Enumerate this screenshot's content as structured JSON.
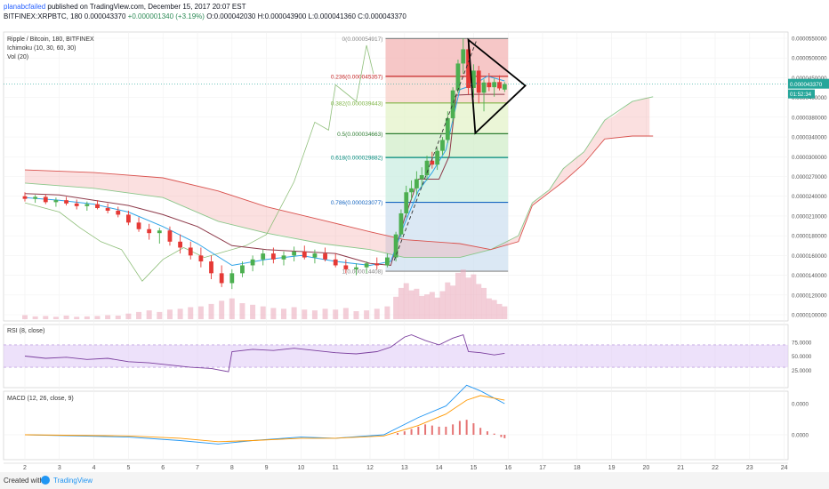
{
  "header": {
    "user": "planabcfailed",
    "published": "published on TradingView.com, December 15, 2017 20:07 EST",
    "symbol": "BITFINEX:XRPBTC, 180",
    "last": "0.000043370",
    "change": "+0.000001340 (+3.19%)",
    "ohlc": "O:0.000042030 H:0.000043900 L:0.000041360 C:0.000043370"
  },
  "footer": {
    "created_with": "Created with",
    "brand": "TradingView"
  },
  "chart_data": {
    "type": "candlestick",
    "legend": [
      "Ripple / Bitcoin, 180, BITFINEX",
      "Ichimoku (10, 30, 60, 30)",
      "Vol (20)"
    ],
    "x_ticks": [
      "2",
      "3",
      "4",
      "5",
      "6",
      "7",
      "8",
      "9",
      "10",
      "11",
      "12",
      "13",
      "14",
      "15",
      "16",
      "17",
      "18",
      "19",
      "20",
      "21",
      "22",
      "23",
      "24"
    ],
    "price_ticks": [
      "0.0000550000",
      "0.0000500000",
      "0.0000450000",
      "0.0000400000",
      "0.0000380000",
      "0.0000340000",
      "0.0000300000",
      "0.0000270000",
      "0.0000240000",
      "0.0000210000",
      "0.0000180000",
      "0.0000160000",
      "0.0000140000",
      "0.0000120000",
      "0.0000100000"
    ],
    "price_tick_values": [
      5.5e-05,
      5e-05,
      4.5e-05,
      4e-05,
      3.8e-05,
      3.4e-05,
      3e-05,
      2.7e-05,
      2.4e-05,
      2.1e-05,
      1.8e-05,
      1.6e-05,
      1.4e-05,
      1.2e-05,
      1.01e-05
    ],
    "last_price_label": "0.000043370",
    "countdown_label": "01:52:34",
    "fib_levels": [
      {
        "label": "0(0.000054917)",
        "value": 5.4917e-05,
        "color": "#888888"
      },
      {
        "label": "0.236(0.000045357)",
        "value": 4.5357e-05,
        "color": "#c62828"
      },
      {
        "label": "0.382(0.000039443)",
        "value": 3.9443e-05,
        "color": "#7cb342"
      },
      {
        "label": "0.5(0.000034663)",
        "value": 3.4663e-05,
        "color": "#2e7d32"
      },
      {
        "label": "0.618(0.000029882)",
        "value": 2.9882e-05,
        "color": "#00897b"
      },
      {
        "label": "0.786(0.000023077)",
        "value": 2.3077e-05,
        "color": "#1565c0"
      },
      {
        "label": "1(0.000014408)",
        "value": 1.4408e-05,
        "color": "#888888"
      }
    ],
    "candles": [
      [
        2.0,
        24.0,
        24.6,
        23.2,
        23.6
      ],
      [
        2.3,
        23.6,
        24.2,
        23.0,
        23.9
      ],
      [
        2.6,
        23.9,
        24.3,
        22.8,
        23.1
      ],
      [
        2.9,
        23.1,
        23.8,
        22.4,
        23.4
      ],
      [
        3.2,
        23.4,
        23.9,
        22.6,
        22.9
      ],
      [
        3.5,
        22.9,
        23.5,
        22.0,
        22.5
      ],
      [
        3.8,
        22.5,
        23.2,
        21.8,
        22.8
      ],
      [
        4.1,
        22.8,
        23.4,
        22.0,
        22.2
      ],
      [
        4.4,
        22.2,
        22.9,
        21.4,
        21.8
      ],
      [
        4.7,
        21.8,
        22.4,
        20.8,
        21.2
      ],
      [
        5.0,
        21.2,
        21.8,
        19.6,
        20.0
      ],
      [
        5.3,
        20.0,
        20.8,
        18.6,
        19.0
      ],
      [
        5.6,
        19.0,
        19.8,
        17.6,
        18.4
      ],
      [
        5.9,
        18.4,
        19.2,
        17.2,
        18.8
      ],
      [
        6.2,
        18.8,
        19.4,
        17.0,
        17.4
      ],
      [
        6.5,
        17.4,
        18.2,
        16.2,
        16.8
      ],
      [
        6.8,
        16.8,
        17.4,
        15.6,
        16.0
      ],
      [
        7.1,
        16.0,
        16.8,
        14.8,
        15.4
      ],
      [
        7.4,
        15.4,
        16.0,
        13.6,
        14.2
      ],
      [
        7.7,
        14.2,
        15.0,
        12.8,
        13.2
      ],
      [
        8.0,
        13.2,
        14.6,
        12.6,
        14.2
      ],
      [
        8.3,
        14.2,
        15.4,
        13.8,
        15.0
      ],
      [
        8.6,
        15.0,
        16.0,
        14.4,
        15.6
      ],
      [
        8.9,
        15.6,
        16.6,
        15.0,
        16.2
      ],
      [
        9.2,
        16.2,
        16.8,
        15.2,
        15.6
      ],
      [
        9.5,
        15.6,
        16.4,
        15.0,
        16.0
      ],
      [
        9.8,
        16.0,
        16.9,
        15.4,
        16.4
      ],
      [
        10.1,
        16.4,
        17.0,
        15.6,
        15.8
      ],
      [
        10.4,
        15.8,
        16.6,
        15.2,
        16.2
      ],
      [
        10.7,
        16.2,
        16.8,
        15.4,
        15.6
      ],
      [
        11.0,
        15.6,
        16.2,
        14.8,
        15.0
      ],
      [
        11.3,
        15.0,
        15.6,
        14.2,
        14.6
      ],
      [
        11.6,
        14.6,
        15.2,
        14.0,
        14.8
      ],
      [
        11.9,
        14.8,
        15.4,
        14.2,
        15.2
      ],
      [
        12.2,
        15.2,
        15.8,
        14.6,
        15.0
      ],
      [
        12.5,
        15.0,
        16.2,
        14.8,
        15.8
      ],
      [
        12.75,
        15.8,
        18.6,
        15.4,
        18.2
      ],
      [
        12.9,
        18.2,
        22.0,
        17.8,
        21.4
      ],
      [
        13.05,
        21.4,
        25.6,
        20.8,
        24.6
      ],
      [
        13.2,
        24.6,
        26.4,
        23.4,
        25.2
      ],
      [
        13.35,
        25.2,
        27.8,
        24.2,
        26.6
      ],
      [
        13.5,
        26.6,
        28.4,
        25.4,
        27.2
      ],
      [
        13.65,
        27.2,
        30.2,
        26.4,
        29.4
      ],
      [
        13.8,
        29.4,
        31.0,
        28.2,
        28.8
      ],
      [
        13.95,
        28.8,
        31.8,
        28.0,
        31.2
      ],
      [
        14.1,
        31.2,
        34.0,
        30.4,
        33.4
      ],
      [
        14.25,
        33.4,
        38.6,
        32.8,
        37.8
      ],
      [
        14.4,
        37.8,
        42.6,
        37.0,
        41.8
      ],
      [
        14.55,
        41.8,
        49.6,
        41.0,
        48.6
      ],
      [
        14.7,
        48.6,
        55.0,
        46.0,
        52.2
      ],
      [
        14.85,
        52.2,
        53.6,
        40.8,
        42.4
      ],
      [
        15.0,
        42.4,
        48.4,
        40.0,
        46.8
      ],
      [
        15.15,
        46.8,
        48.0,
        39.4,
        41.2
      ],
      [
        15.3,
        41.2,
        44.6,
        38.6,
        43.8
      ],
      [
        15.45,
        43.8,
        46.2,
        41.6,
        42.6
      ],
      [
        15.6,
        42.6,
        44.8,
        40.2,
        43.9
      ],
      [
        15.75,
        43.9,
        45.6,
        41.8,
        42.3
      ],
      [
        15.9,
        42.0,
        43.9,
        41.4,
        43.4
      ]
    ],
    "volume": [
      [
        2.0,
        0.5
      ],
      [
        2.3,
        0.35
      ],
      [
        2.6,
        0.4
      ],
      [
        2.9,
        0.3
      ],
      [
        3.2,
        0.45
      ],
      [
        3.5,
        0.3
      ],
      [
        3.8,
        0.35
      ],
      [
        4.1,
        0.4
      ],
      [
        4.4,
        0.5
      ],
      [
        4.7,
        0.45
      ],
      [
        5.0,
        0.7
      ],
      [
        5.3,
        0.9
      ],
      [
        5.6,
        1.1
      ],
      [
        5.9,
        0.9
      ],
      [
        6.2,
        1.2
      ],
      [
        6.5,
        1.3
      ],
      [
        6.8,
        1.5
      ],
      [
        7.1,
        1.6
      ],
      [
        7.4,
        1.9
      ],
      [
        7.7,
        2.3
      ],
      [
        8.0,
        2.6
      ],
      [
        8.3,
        2.0
      ],
      [
        8.6,
        1.8
      ],
      [
        8.9,
        1.6
      ],
      [
        9.2,
        1.4
      ],
      [
        9.5,
        1.3
      ],
      [
        9.8,
        1.5
      ],
      [
        10.1,
        1.2
      ],
      [
        10.4,
        1.1
      ],
      [
        10.7,
        1.3
      ],
      [
        11.0,
        1.2
      ],
      [
        11.3,
        1.4
      ],
      [
        11.6,
        1.0
      ],
      [
        11.9,
        1.1
      ],
      [
        12.2,
        1.3
      ],
      [
        12.5,
        1.6
      ],
      [
        12.75,
        2.8
      ],
      [
        12.9,
        3.9
      ],
      [
        13.05,
        4.5
      ],
      [
        13.2,
        3.6
      ],
      [
        13.35,
        3.8
      ],
      [
        13.5,
        2.9
      ],
      [
        13.65,
        3.1
      ],
      [
        13.8,
        3.4
      ],
      [
        13.95,
        2.7
      ],
      [
        14.1,
        3.5
      ],
      [
        14.25,
        4.6
      ],
      [
        14.4,
        4.2
      ],
      [
        14.55,
        5.8
      ],
      [
        14.7,
        6.2
      ],
      [
        14.85,
        5.2
      ],
      [
        15.0,
        5.6
      ],
      [
        15.15,
        4.4
      ],
      [
        15.3,
        3.9
      ],
      [
        15.45,
        2.6
      ],
      [
        15.6,
        2.4
      ],
      [
        15.75,
        1.9
      ],
      [
        15.9,
        1.6
      ]
    ],
    "ichimoku": {
      "tenkan": [
        [
          2.0,
          23.8
        ],
        [
          3.0,
          23.4
        ],
        [
          4.0,
          22.8
        ],
        [
          5.0,
          21.6
        ],
        [
          6.0,
          19.4
        ],
        [
          7.0,
          17.2
        ],
        [
          8.0,
          15.0
        ],
        [
          9.0,
          15.6
        ],
        [
          10.0,
          16.0
        ],
        [
          11.0,
          15.4
        ],
        [
          12.0,
          15.0
        ],
        [
          12.6,
          15.4
        ],
        [
          13.0,
          19.8
        ],
        [
          13.4,
          24.8
        ],
        [
          13.8,
          27.6
        ],
        [
          14.2,
          31.4
        ],
        [
          14.6,
          42.0
        ],
        [
          15.0,
          43.2
        ],
        [
          15.4,
          45.4
        ],
        [
          15.9,
          44.2
        ]
      ],
      "kijun": [
        [
          2.0,
          24.4
        ],
        [
          3.0,
          24.2
        ],
        [
          4.0,
          23.4
        ],
        [
          5.0,
          22.6
        ],
        [
          6.0,
          21.2
        ],
        [
          7.0,
          19.4
        ],
        [
          8.0,
          17.0
        ],
        [
          9.0,
          16.6
        ],
        [
          10.0,
          16.4
        ],
        [
          11.0,
          16.2
        ],
        [
          12.0,
          15.2
        ],
        [
          12.6,
          15.0
        ],
        [
          13.0,
          20.6
        ],
        [
          13.4,
          26.6
        ],
        [
          14.0,
          26.6
        ],
        [
          14.3,
          30.2
        ],
        [
          14.5,
          40.6
        ],
        [
          15.0,
          40.8
        ],
        [
          15.9,
          40.8
        ]
      ],
      "chikou": [
        [
          2.0,
          23.0
        ],
        [
          3.0,
          21.6
        ],
        [
          3.6,
          19.2
        ],
        [
          4.2,
          17.4
        ],
        [
          4.8,
          16.6
        ],
        [
          5.4,
          13.4
        ],
        [
          6.0,
          15.6
        ],
        [
          6.6,
          16.8
        ],
        [
          7.2,
          15.8
        ],
        [
          7.8,
          16.4
        ],
        [
          8.4,
          17.0
        ],
        [
          9.0,
          18.2
        ],
        [
          9.8,
          26.2
        ],
        [
          10.4,
          37.0
        ],
        [
          10.8,
          35.4
        ],
        [
          11.0,
          43.2
        ],
        [
          11.6,
          39.6
        ],
        [
          11.9,
          53.2
        ],
        [
          12.1,
          46.0
        ]
      ],
      "senkou_a": [
        [
          2.0,
          26.0
        ],
        [
          4.0,
          25.2
        ],
        [
          6.0,
          23.8
        ],
        [
          7.6,
          20.2
        ],
        [
          9.0,
          18.4
        ],
        [
          10.6,
          17.2
        ],
        [
          12.0,
          16.6
        ],
        [
          13.0,
          15.8
        ],
        [
          14.6,
          15.8
        ],
        [
          15.5,
          16.6
        ],
        [
          16.3,
          18.0
        ],
        [
          16.7,
          23.0
        ],
        [
          17.2,
          25.0
        ],
        [
          17.6,
          28.2
        ],
        [
          18.2,
          31.0
        ],
        [
          18.8,
          37.4
        ],
        [
          19.6,
          39.6
        ],
        [
          20.2,
          40.2
        ]
      ],
      "senkou_b": [
        [
          2.0,
          28.0
        ],
        [
          4.0,
          27.6
        ],
        [
          6.0,
          26.8
        ],
        [
          7.6,
          24.8
        ],
        [
          9.0,
          22.4
        ],
        [
          10.6,
          20.4
        ],
        [
          12.0,
          18.6
        ],
        [
          13.0,
          17.6
        ],
        [
          14.6,
          17.2
        ],
        [
          15.5,
          16.6
        ],
        [
          16.3,
          17.4
        ],
        [
          16.7,
          22.6
        ],
        [
          17.2,
          24.6
        ],
        [
          17.6,
          26.2
        ],
        [
          18.2,
          29.0
        ],
        [
          18.8,
          33.6
        ],
        [
          19.6,
          34.2
        ],
        [
          20.2,
          34.2
        ]
      ]
    },
    "rsi": {
      "title": "RSI (8, close)",
      "ticks": [
        "75.0000",
        "50.0000",
        "25.0000"
      ],
      "tick_values": [
        75,
        50,
        25
      ],
      "band": [
        30,
        70
      ],
      "points": [
        [
          2.0,
          50
        ],
        [
          2.6,
          46
        ],
        [
          3.2,
          48
        ],
        [
          3.8,
          44
        ],
        [
          4.4,
          46
        ],
        [
          5.0,
          40
        ],
        [
          5.6,
          38
        ],
        [
          6.2,
          34
        ],
        [
          6.8,
          30
        ],
        [
          7.4,
          28
        ],
        [
          7.9,
          22
        ],
        [
          8.0,
          58
        ],
        [
          8.6,
          62
        ],
        [
          9.2,
          60
        ],
        [
          9.8,
          64
        ],
        [
          10.4,
          60
        ],
        [
          11.0,
          56
        ],
        [
          11.6,
          54
        ],
        [
          12.2,
          58
        ],
        [
          12.6,
          66
        ],
        [
          13.0,
          84
        ],
        [
          13.2,
          88
        ],
        [
          13.6,
          78
        ],
        [
          14.0,
          70
        ],
        [
          14.4,
          82
        ],
        [
          14.7,
          88
        ],
        [
          14.85,
          58
        ],
        [
          15.2,
          56
        ],
        [
          15.6,
          52
        ],
        [
          15.9,
          55
        ]
      ]
    },
    "macd": {
      "title": "MACD (12, 26, close, 9)",
      "ticks": [
        "0.0000",
        "0.0000"
      ],
      "tick_values": [
        2.7e-06,
        0
      ],
      "macd_line": [
        [
          2.0,
          0
        ],
        [
          5.0,
          -2e-07
        ],
        [
          6.5,
          -5e-07
        ],
        [
          7.6,
          -8e-07
        ],
        [
          8.6,
          -5e-07
        ],
        [
          10.0,
          -2e-07
        ],
        [
          11.0,
          -3e-07
        ],
        [
          12.4,
          0
        ],
        [
          13.4,
          1.5e-06
        ],
        [
          14.2,
          2.5e-06
        ],
        [
          14.8,
          4.3e-06
        ],
        [
          15.2,
          3.8e-06
        ],
        [
          15.9,
          2.7e-06
        ]
      ],
      "signal_line": [
        [
          2.0,
          0
        ],
        [
          5.0,
          -1e-07
        ],
        [
          6.5,
          -3e-07
        ],
        [
          7.6,
          -6e-07
        ],
        [
          8.6,
          -5e-07
        ],
        [
          10.0,
          -3e-07
        ],
        [
          11.0,
          -3e-07
        ],
        [
          12.4,
          -1e-07
        ],
        [
          13.4,
          8e-07
        ],
        [
          14.2,
          1.8e-06
        ],
        [
          14.8,
          3e-06
        ],
        [
          15.2,
          3.4e-06
        ],
        [
          15.9,
          3e-06
        ]
      ],
      "histogram": [
        [
          12.8,
          1.5e-07
        ],
        [
          13.0,
          3e-07
        ],
        [
          13.2,
          5e-07
        ],
        [
          13.4,
          7e-07
        ],
        [
          13.6,
          9e-07
        ],
        [
          13.8,
          8e-07
        ],
        [
          14.0,
          7e-07
        ],
        [
          14.2,
          7e-07
        ],
        [
          14.4,
          9e-07
        ],
        [
          14.6,
          1.2e-06
        ],
        [
          14.8,
          1.3e-06
        ],
        [
          15.0,
          1e-06
        ],
        [
          15.2,
          6e-07
        ],
        [
          15.4,
          3e-07
        ],
        [
          15.6,
          1e-07
        ],
        [
          15.8,
          -2e-07
        ],
        [
          15.9,
          -3e-07
        ]
      ]
    }
  }
}
